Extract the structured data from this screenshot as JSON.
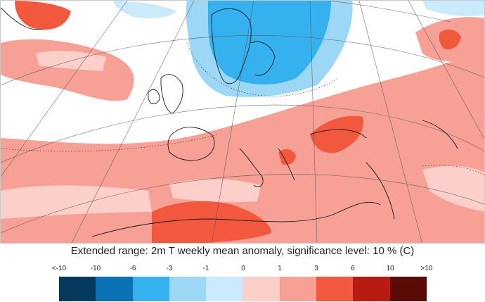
{
  "caption": "Extended range: 2m T weekly mean anomaly, significance level: 10 % (C)",
  "legend": {
    "ticks": [
      "<-10",
      "-10",
      "-6",
      "-3",
      "-1",
      "0",
      "1",
      "3",
      "6",
      "10",
      ">10"
    ],
    "colors": [
      "#063a5c",
      "#0b73b5",
      "#36b1ef",
      "#9dd7f6",
      "#cbeafb",
      "#fdcfcb",
      "#f7a196",
      "#f2583e",
      "#b71b11",
      "#5a0b05"
    ]
  },
  "map": {
    "background_color": "#ffffff",
    "land_line_color": "#1a1a1a",
    "grid_line_color": "#555555"
  }
}
